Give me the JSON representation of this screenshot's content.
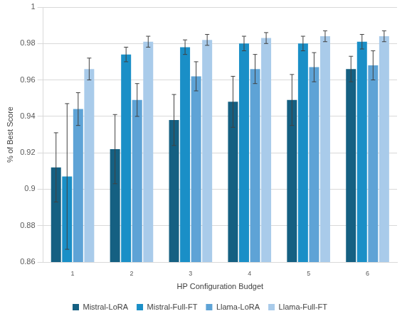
{
  "chart_data": {
    "type": "bar",
    "x_label": "HP Configuration Budget",
    "y_label": "% of Best Score",
    "categories": [
      "1",
      "2",
      "3",
      "4",
      "5",
      "6"
    ],
    "series": [
      {
        "name": "Mistral-LoRA",
        "color": "#156082",
        "values": [
          0.912,
          0.922,
          0.938,
          0.948,
          0.949,
          0.966
        ],
        "errors": [
          0.019,
          0.019,
          0.014,
          0.014,
          0.014,
          0.007
        ]
      },
      {
        "name": "Mistral-Full-FT",
        "color": "#1a8fc7",
        "values": [
          0.907,
          0.974,
          0.978,
          0.98,
          0.98,
          0.981
        ],
        "errors": [
          0.04,
          0.004,
          0.004,
          0.004,
          0.004,
          0.004
        ]
      },
      {
        "name": "Llama-LoRA",
        "color": "#5ea3d6",
        "values": [
          0.944,
          0.949,
          0.962,
          0.966,
          0.967,
          0.968
        ],
        "errors": [
          0.009,
          0.009,
          0.008,
          0.008,
          0.008,
          0.008
        ]
      },
      {
        "name": "Llama-Full-FT",
        "color": "#a9cbea",
        "values": [
          0.966,
          0.981,
          0.982,
          0.983,
          0.984,
          0.984
        ],
        "errors": [
          0.006,
          0.003,
          0.003,
          0.003,
          0.003,
          0.003
        ]
      }
    ],
    "ylim": [
      0.86,
      1
    ],
    "yticks": [
      0.86,
      0.88,
      0.9,
      0.92,
      0.94,
      0.96,
      0.98,
      1
    ],
    "grid": true,
    "legend": "bottom"
  }
}
